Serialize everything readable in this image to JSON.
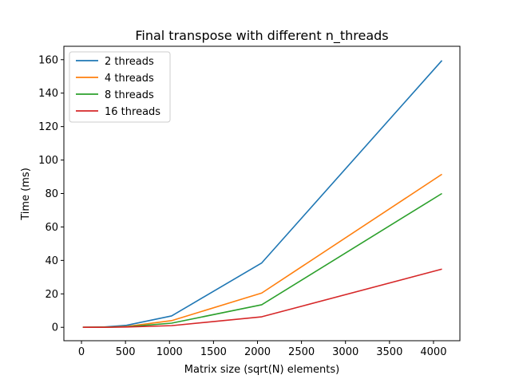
{
  "chart_data": {
    "type": "line",
    "title": "Final transpose with different n_threads",
    "xlabel": "Matrix size (sqrt(N) elements)",
    "ylabel": "Time (ms)",
    "xlim": [
      -200,
      4300
    ],
    "ylim": [
      -8,
      168
    ],
    "xticks": [
      0,
      500,
      1000,
      1500,
      2000,
      2500,
      3000,
      3500,
      4000
    ],
    "yticks": [
      0,
      20,
      40,
      60,
      80,
      100,
      120,
      140,
      160
    ],
    "legend_position": "upper-left",
    "x": [
      16,
      256,
      512,
      1024,
      2048,
      4096
    ],
    "series": [
      {
        "name": "2 threads",
        "color": "#1f77b4",
        "values": [
          0.0,
          0.2,
          1.2,
          6.8,
          38.5,
          159.5
        ]
      },
      {
        "name": "4 threads",
        "color": "#ff7f0e",
        "values": [
          0.0,
          0.1,
          0.5,
          4.0,
          20.5,
          91.5
        ]
      },
      {
        "name": "8 threads",
        "color": "#2ca02c",
        "values": [
          0.0,
          0.1,
          0.3,
          2.5,
          13.5,
          80.0
        ]
      },
      {
        "name": "16 threads",
        "color": "#d62728",
        "values": [
          0.0,
          0.0,
          0.2,
          1.0,
          6.3,
          34.8
        ]
      }
    ]
  }
}
